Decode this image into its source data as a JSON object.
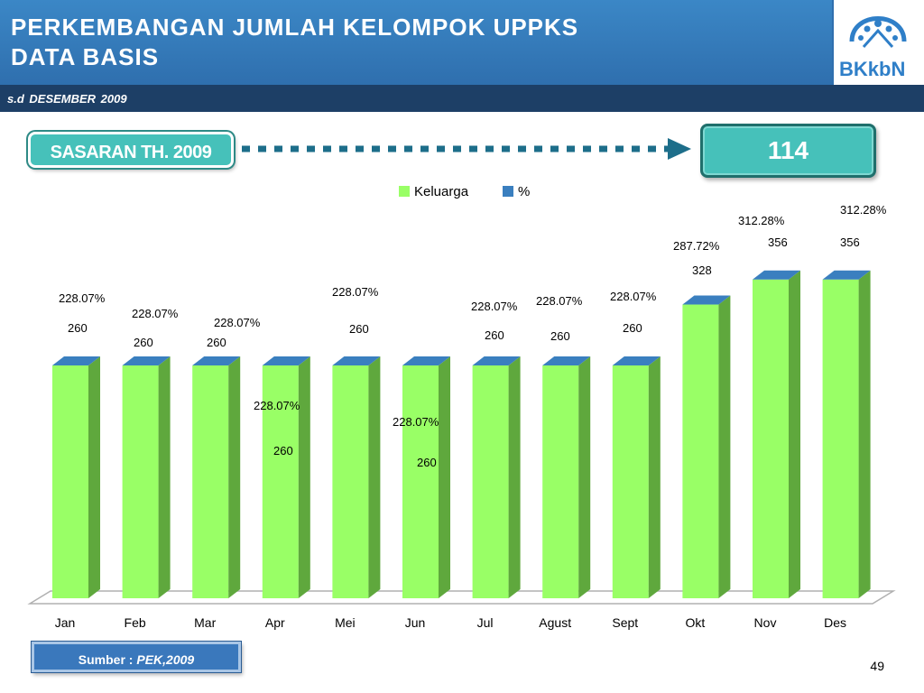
{
  "header": {
    "title": "PERKEMBANGAN JUMLAH KELOMPOK UPPKS\nDATA BASIS",
    "subtitle": "s.d  DESEMBER  2009",
    "logo_text": "BKkbN",
    "colors": {
      "header": "#3b87c6",
      "subbar": "#1d3f66"
    }
  },
  "target": {
    "label": "SASARAN TH. 2009",
    "value": "114",
    "color": "#46c1ba"
  },
  "chart_data": {
    "type": "bar",
    "title": "",
    "xlabel": "",
    "ylabel": "",
    "ylim": [
      0,
      400
    ],
    "grid": false,
    "legend_position": "top-center",
    "categories": [
      "Jan",
      "Feb",
      "Mar",
      "Apr",
      "Mei",
      "Jun",
      "Jul",
      "Agust",
      "Sept",
      "Okt",
      "Nov",
      "Des"
    ],
    "series": [
      {
        "name": "Keluarga",
        "color": "#99ff66",
        "values": [
          260,
          260,
          260,
          260,
          260,
          260,
          260,
          260,
          260,
          328,
          356,
          356
        ]
      },
      {
        "name": "%",
        "color": "#3a7fbf",
        "values": [
          "228.07%",
          "228.07%",
          "228.07%",
          "228.07%",
          "228.07%",
          "228.07%",
          "228.07%",
          "228.07%",
          "228.07%",
          "287.72%",
          "312.28%",
          "312.28%"
        ]
      }
    ],
    "value_labels": [
      "260",
      "260",
      "260",
      "260",
      "260",
      "260",
      "260",
      "260",
      "260",
      "328",
      "356",
      "356"
    ],
    "percent_labels": [
      "228.07%",
      "228.07%",
      "228.07%",
      "228.07%",
      "228.07%",
      "228.07%",
      "228.07%",
      "228.07%",
      "228.07%",
      "287.72%",
      "312.28%",
      "312.28%"
    ]
  },
  "footer": {
    "source_label": "Sumber :",
    "source_value": "PEK,2009",
    "page_number": "49"
  }
}
